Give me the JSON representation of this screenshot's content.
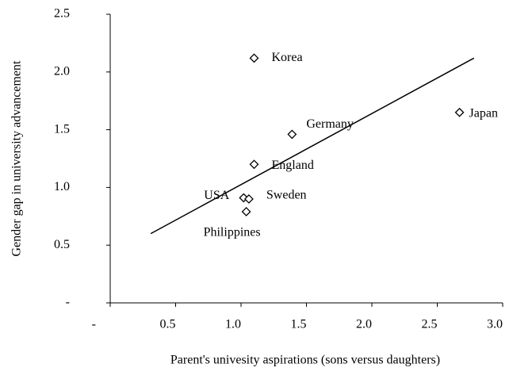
{
  "chart_data": {
    "type": "scatter",
    "x_label": "Parent's univesity aspirations (sons versus daughters)",
    "y_label": "Gender gap in university advancement",
    "series": [
      {
        "names": [
          "Korea",
          "Japan",
          "Germany",
          "England",
          "USA",
          "Sweden",
          "Philippines"
        ],
        "x": [
          1.1,
          2.67,
          1.39,
          1.1,
          1.02,
          1.06,
          1.04
        ],
        "values": [
          2.12,
          1.65,
          1.46,
          1.2,
          0.91,
          0.9,
          0.79
        ],
        "color": "#000000"
      }
    ],
    "trendline": {
      "x": [
        0.31,
        2.78
      ],
      "values": [
        0.6,
        2.12
      ]
    },
    "xlim": [
      0,
      3
    ],
    "ylim": [
      0,
      2.5
    ],
    "xticks": [
      {
        "value": 0,
        "label": "-"
      },
      0.5,
      {
        "value": 1,
        "label": "1.0"
      },
      1.5,
      {
        "value": 2,
        "label": "2.0"
      },
      2.5,
      {
        "value": 3,
        "label": "3.0"
      }
    ],
    "yticks": [
      {
        "value": 0,
        "label": "-"
      },
      0.5,
      {
        "value": 1,
        "label": "1.0"
      },
      1.5,
      {
        "value": 2,
        "label": "2.0"
      },
      2.5
    ]
  }
}
